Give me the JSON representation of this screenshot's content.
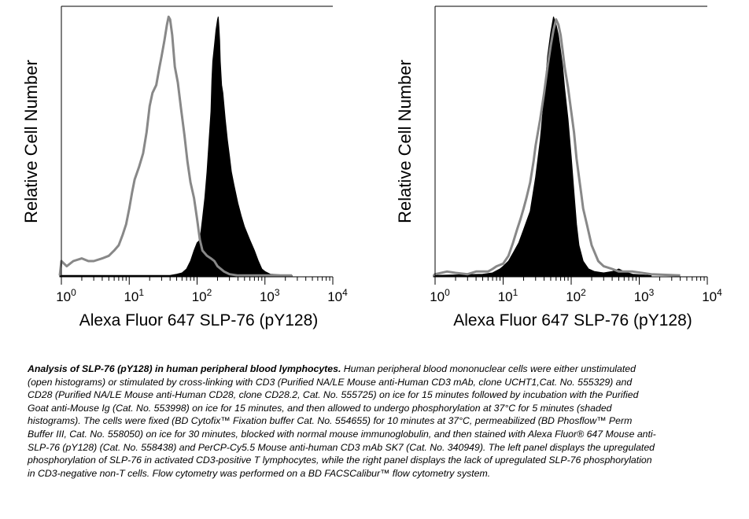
{
  "chart_data": [
    {
      "type": "area",
      "panel": "left",
      "xlabel": "Alexa Fluor 647 SLP-76 (pY128)",
      "ylabel": "Relative Cell Number",
      "xscale": "log",
      "xlim": [
        1,
        10000
      ],
      "xticks": [
        {
          "base": "10",
          "exp": "0",
          "value": 1
        },
        {
          "base": "10",
          "exp": "1",
          "value": 10
        },
        {
          "base": "10",
          "exp": "2",
          "value": 100
        },
        {
          "base": "10",
          "exp": "3",
          "value": 1000
        },
        {
          "base": "10",
          "exp": "4",
          "value": 10000
        }
      ],
      "ylim": [
        0,
        100
      ],
      "grid": false,
      "series": [
        {
          "role": "shaded",
          "color": "#000000",
          "points": [
            [
              0.6,
              0.5
            ],
            [
              40,
              0.5
            ],
            [
              50,
              1
            ],
            [
              60,
              1.5
            ],
            [
              70,
              3
            ],
            [
              80,
              6
            ],
            [
              90,
              10
            ],
            [
              100,
              13
            ],
            [
              110,
              14
            ],
            [
              120,
              22
            ],
            [
              130,
              30
            ],
            [
              140,
              40
            ],
            [
              150,
              52
            ],
            [
              160,
              63
            ],
            [
              165,
              75
            ],
            [
              170,
              82
            ],
            [
              180,
              88
            ],
            [
              190,
              94
            ],
            [
              200,
              98
            ],
            [
              205,
              99
            ],
            [
              210,
              95
            ],
            [
              215,
              90
            ],
            [
              220,
              82
            ],
            [
              230,
              73
            ],
            [
              240,
              70
            ],
            [
              260,
              60
            ],
            [
              280,
              52
            ],
            [
              300,
              46
            ],
            [
              320,
              40
            ],
            [
              350,
              35
            ],
            [
              400,
              28
            ],
            [
              450,
              23
            ],
            [
              500,
              19
            ],
            [
              600,
              14
            ],
            [
              700,
              10
            ],
            [
              800,
              6
            ],
            [
              900,
              3
            ],
            [
              1000,
              2
            ],
            [
              1200,
              1
            ],
            [
              2500,
              0.5
            ]
          ]
        },
        {
          "role": "open",
          "color": "#888888",
          "points": [
            [
              0.6,
              0.5
            ],
            [
              1,
              6
            ],
            [
              1.2,
              4
            ],
            [
              1.5,
              6
            ],
            [
              2,
              7
            ],
            [
              2.5,
              6
            ],
            [
              3,
              6
            ],
            [
              4,
              7
            ],
            [
              5,
              8
            ],
            [
              6,
              10
            ],
            [
              7,
              12
            ],
            [
              8,
              16
            ],
            [
              9,
              20
            ],
            [
              10,
              26
            ],
            [
              11,
              32
            ],
            [
              12,
              37
            ],
            [
              14,
              42
            ],
            [
              16,
              47
            ],
            [
              18,
              55
            ],
            [
              20,
              65
            ],
            [
              22,
              70
            ],
            [
              25,
              73
            ],
            [
              28,
              80
            ],
            [
              30,
              84
            ],
            [
              33,
              90
            ],
            [
              36,
              96
            ],
            [
              38,
              99
            ],
            [
              40,
              98
            ],
            [
              43,
              92
            ],
            [
              47,
              80
            ],
            [
              52,
              74
            ],
            [
              58,
              64
            ],
            [
              65,
              54
            ],
            [
              72,
              44
            ],
            [
              80,
              36
            ],
            [
              90,
              30
            ],
            [
              100,
              22
            ],
            [
              110,
              14
            ],
            [
              120,
              10
            ],
            [
              140,
              8
            ],
            [
              160,
              7
            ],
            [
              180,
              6
            ],
            [
              200,
              4
            ],
            [
              250,
              2
            ],
            [
              300,
              1
            ],
            [
              400,
              0.5
            ],
            [
              2500,
              0.5
            ]
          ]
        }
      ]
    },
    {
      "type": "area",
      "panel": "right",
      "xlabel": "Alexa Fluor 647 SLP-76 (pY128)",
      "ylabel": "Relative Cell Number",
      "xscale": "log",
      "xlim": [
        1,
        10000
      ],
      "xticks": [
        {
          "base": "10",
          "exp": "0",
          "value": 1
        },
        {
          "base": "10",
          "exp": "1",
          "value": 10
        },
        {
          "base": "10",
          "exp": "2",
          "value": 100
        },
        {
          "base": "10",
          "exp": "3",
          "value": 1000
        },
        {
          "base": "10",
          "exp": "4",
          "value": 10000
        }
      ],
      "ylim": [
        0,
        100
      ],
      "grid": false,
      "series": [
        {
          "role": "shaded",
          "color": "#000000",
          "points": [
            [
              0.6,
              0.5
            ],
            [
              3,
              0.8
            ],
            [
              5,
              1
            ],
            [
              7,
              1.5
            ],
            [
              9,
              3
            ],
            [
              10,
              4
            ],
            [
              12,
              6
            ],
            [
              14,
              9
            ],
            [
              17,
              13
            ],
            [
              20,
              18
            ],
            [
              25,
              25
            ],
            [
              30,
              38
            ],
            [
              35,
              52
            ],
            [
              40,
              68
            ],
            [
              45,
              84
            ],
            [
              50,
              93
            ],
            [
              55,
              99
            ],
            [
              60,
              96
            ],
            [
              65,
              92
            ],
            [
              70,
              86
            ],
            [
              75,
              80
            ],
            [
              80,
              72
            ],
            [
              90,
              60
            ],
            [
              100,
              46
            ],
            [
              110,
              32
            ],
            [
              120,
              20
            ],
            [
              130,
              12
            ],
            [
              150,
              6
            ],
            [
              180,
              3
            ],
            [
              220,
              2
            ],
            [
              300,
              1.5
            ],
            [
              400,
              2
            ],
            [
              500,
              3
            ],
            [
              600,
              2
            ],
            [
              800,
              1
            ],
            [
              1500,
              0.5
            ]
          ]
        },
        {
          "role": "open",
          "color": "#888888",
          "points": [
            [
              0.6,
              0.5
            ],
            [
              1,
              1
            ],
            [
              1.5,
              2
            ],
            [
              2,
              1.5
            ],
            [
              3,
              1
            ],
            [
              4,
              2
            ],
            [
              5,
              2
            ],
            [
              6,
              2
            ],
            [
              7,
              3
            ],
            [
              8,
              4
            ],
            [
              10,
              5
            ],
            [
              12,
              8
            ],
            [
              14,
              13
            ],
            [
              16,
              18
            ],
            [
              18,
              22
            ],
            [
              20,
              26
            ],
            [
              22,
              30
            ],
            [
              25,
              36
            ],
            [
              28,
              44
            ],
            [
              30,
              50
            ],
            [
              35,
              60
            ],
            [
              40,
              70
            ],
            [
              45,
              80
            ],
            [
              50,
              88
            ],
            [
              55,
              94
            ],
            [
              60,
              98
            ],
            [
              65,
              96
            ],
            [
              70,
              92
            ],
            [
              75,
              86
            ],
            [
              80,
              80
            ],
            [
              90,
              72
            ],
            [
              100,
              63
            ],
            [
              110,
              55
            ],
            [
              120,
              45
            ],
            [
              130,
              38
            ],
            [
              140,
              32
            ],
            [
              150,
              26
            ],
            [
              170,
              20
            ],
            [
              200,
              12
            ],
            [
              250,
              6
            ],
            [
              300,
              4
            ],
            [
              400,
              3
            ],
            [
              500,
              2
            ],
            [
              800,
              2
            ],
            [
              1500,
              1
            ],
            [
              4000,
              0.5
            ]
          ]
        }
      ]
    }
  ],
  "caption": {
    "title": "Analysis of SLP-76 (pY128) in human peripheral blood lymphocytes.",
    "body": "Human peripheral blood mononuclear cells were either unstimulated (open histograms) or stimulated by cross-linking with CD3 (Purified NA/LE Mouse anti-Human CD3 mAb, clone UCHT1,Cat. No. 555329) and CD28 (Purified NA/LE Mouse anti-Human CD28, clone CD28.2, Cat. No. 555725) on ice for 15 minutes followed by incubation with the Purified Goat anti-Mouse Ig (Cat. No. 553998) on ice for 15 minutes, and then allowed to undergo phosphorylation at 37°C for 5 minutes (shaded histograms). The cells were fixed (BD Cytofix™ Fixation buffer Cat. No. 554655) for 10 minutes at 37°C, permeabilized (BD Phosflow™ Perm Buffer III, Cat. No. 558050) on ice for 30 minutes, blocked with normal mouse immunoglobulin, and then stained with Alexa Fluor® 647 Mouse anti-SLP-76 (pY128) (Cat. No. 558438) and PerCP-Cy5.5 Mouse anti-human CD3 mAb SK7 (Cat. No. 340949). The left panel displays the upregulated phosphorylation of SLP-76 in activated CD3-positive T lymphocytes, while the right panel displays the lack of upregulated SLP-76 phosphorylation in CD3-negative non-T cells. Flow cytometry was performed on a BD FACSCalibur™ flow cytometry system."
  }
}
